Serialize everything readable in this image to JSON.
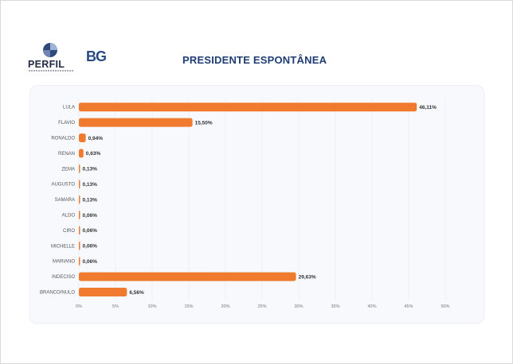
{
  "header": {
    "brand_name": "PERFIL",
    "brand_tagline": "INTELIGÊNCIA EM DADOS",
    "partner_logo_text": "BG",
    "title": "PRESIDENTE ESPONTÂNEA"
  },
  "colors": {
    "bar": "#f07b2e",
    "title": "#1f3d73",
    "grid": "#e3e7ee",
    "panel": "#f7f9fd"
  },
  "chart_data": {
    "type": "bar",
    "orientation": "horizontal",
    "title": "PRESIDENTE ESPONTÂNEA",
    "categories": [
      "LULA",
      "FLAVIO",
      "RONALDO",
      "RENAN",
      "ZEMA",
      "AUGUSTO",
      "SAMARA",
      "ALDO",
      "CIRO",
      "MICHELLE",
      "MARIANO",
      "INDECISO",
      "BRANCO/NULO"
    ],
    "values": [
      46.11,
      15.5,
      0.94,
      0.63,
      0.13,
      0.13,
      0.13,
      0.06,
      0.06,
      0.06,
      0.06,
      29.63,
      6.56
    ],
    "value_labels": [
      "46,11%",
      "15,50%",
      "0,94%",
      "0,63%",
      "0,13%",
      "0,13%",
      "0,13%",
      "0,06%",
      "0,06%",
      "0,06%",
      "0,06%",
      "29,63%",
      "6,56%"
    ],
    "xlim": [
      0,
      50
    ],
    "x_ticks": [
      "0%",
      "5%",
      "10%",
      "15%",
      "20%",
      "25%",
      "30%",
      "35%",
      "40%",
      "45%",
      "50%"
    ],
    "grid": true,
    "legend": "none"
  }
}
